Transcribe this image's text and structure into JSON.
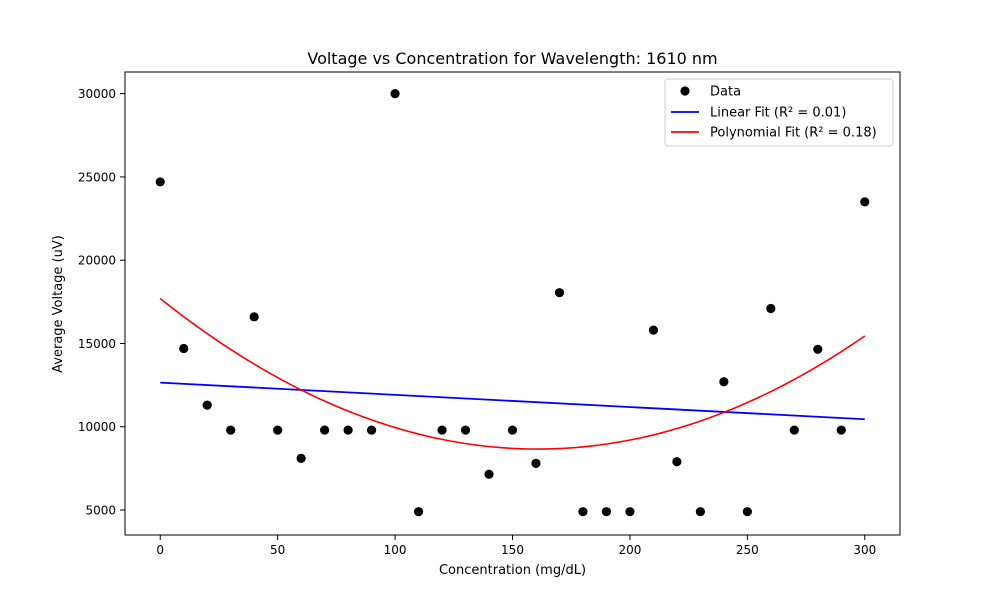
{
  "chart_data": {
    "type": "scatter",
    "title": "Voltage vs Concentration for Wavelength: 1610 nm",
    "xlabel": "Concentration (mg/dL)",
    "ylabel": "Average Voltage (uV)",
    "xlim": [
      -15,
      315
    ],
    "ylim": [
      3500,
      31300
    ],
    "xticks": [
      0,
      50,
      100,
      150,
      200,
      250,
      300
    ],
    "yticks": [
      5000,
      10000,
      15000,
      20000,
      25000,
      30000
    ],
    "grid": false,
    "legend_position": "top-right",
    "series": [
      {
        "name": "Data",
        "kind": "scatter",
        "color": "#000000",
        "x": [
          0,
          10,
          20,
          30,
          40,
          50,
          60,
          70,
          80,
          90,
          100,
          110,
          120,
          130,
          140,
          150,
          160,
          170,
          180,
          190,
          200,
          210,
          220,
          230,
          240,
          250,
          260,
          270,
          280,
          290,
          300
        ],
        "y": [
          24700,
          14700,
          11300,
          9800,
          16600,
          9800,
          8100,
          9800,
          9800,
          9800,
          30000,
          4900,
          9800,
          9800,
          7150,
          9800,
          7800,
          18050,
          4900,
          4900,
          4900,
          15800,
          7900,
          4900,
          12700,
          4900,
          17100,
          9800,
          14650,
          9800,
          23500
        ]
      },
      {
        "name": "Linear Fit (R² = 0.01)",
        "kind": "line",
        "color": "#0000ff",
        "x": [
          0,
          300
        ],
        "y": [
          12650,
          10450
        ]
      },
      {
        "name": "Polynomial Fit (R² = 0.18)",
        "kind": "curve",
        "color": "#ff0000",
        "x": [
          0,
          300
        ],
        "coefficients": [
          17700,
          -112.5,
          0.35
        ]
      }
    ]
  }
}
